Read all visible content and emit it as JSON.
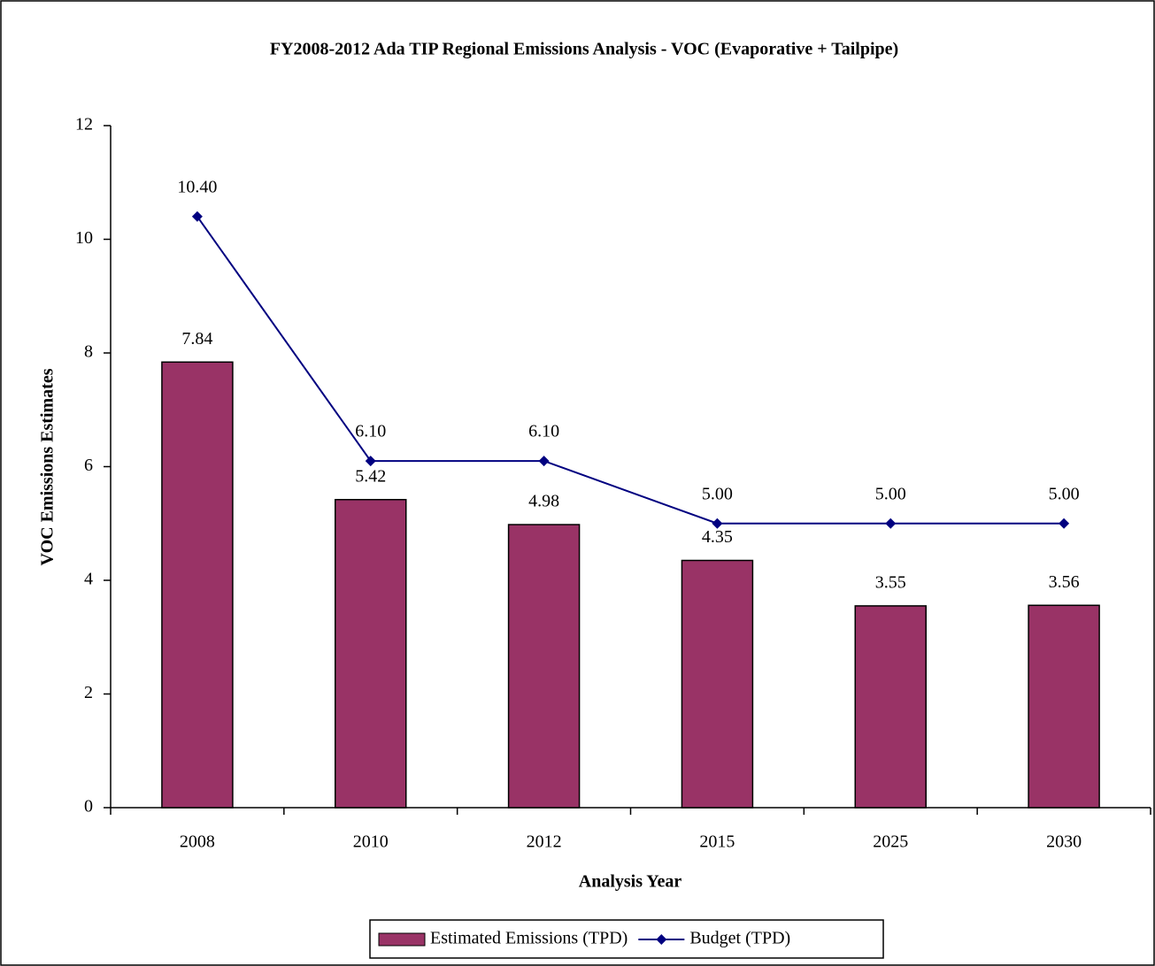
{
  "chart_data": {
    "type": "bar",
    "title": "FY2008-2012 Ada TIP Regional Emissions Analysis - VOC (Evaporative + Tailpipe)",
    "y_label": "VOC Emissions Estimates",
    "x_label": "Analysis Year",
    "categories": [
      "2008",
      "2010",
      "2012",
      "2015",
      "2025",
      "2030"
    ],
    "series": [
      {
        "name": "Estimated Emissions (TPD)",
        "type": "bar",
        "color": "#993366",
        "values": [
          7.84,
          5.42,
          4.98,
          4.35,
          3.55,
          3.56
        ]
      },
      {
        "name": "Budget (TPD)",
        "type": "line",
        "color": "#000080",
        "values": [
          10.4,
          6.1,
          6.1,
          5,
          5,
          5
        ],
        "value_labels": [
          "10.40",
          "6.10",
          "6.10",
          "5.00",
          "5.00",
          "5.00"
        ]
      }
    ],
    "ylim": [
      0,
      12
    ],
    "yticks": [
      0,
      2,
      4,
      6,
      8,
      10,
      12
    ],
    "grid": false,
    "legend": "bottom"
  }
}
